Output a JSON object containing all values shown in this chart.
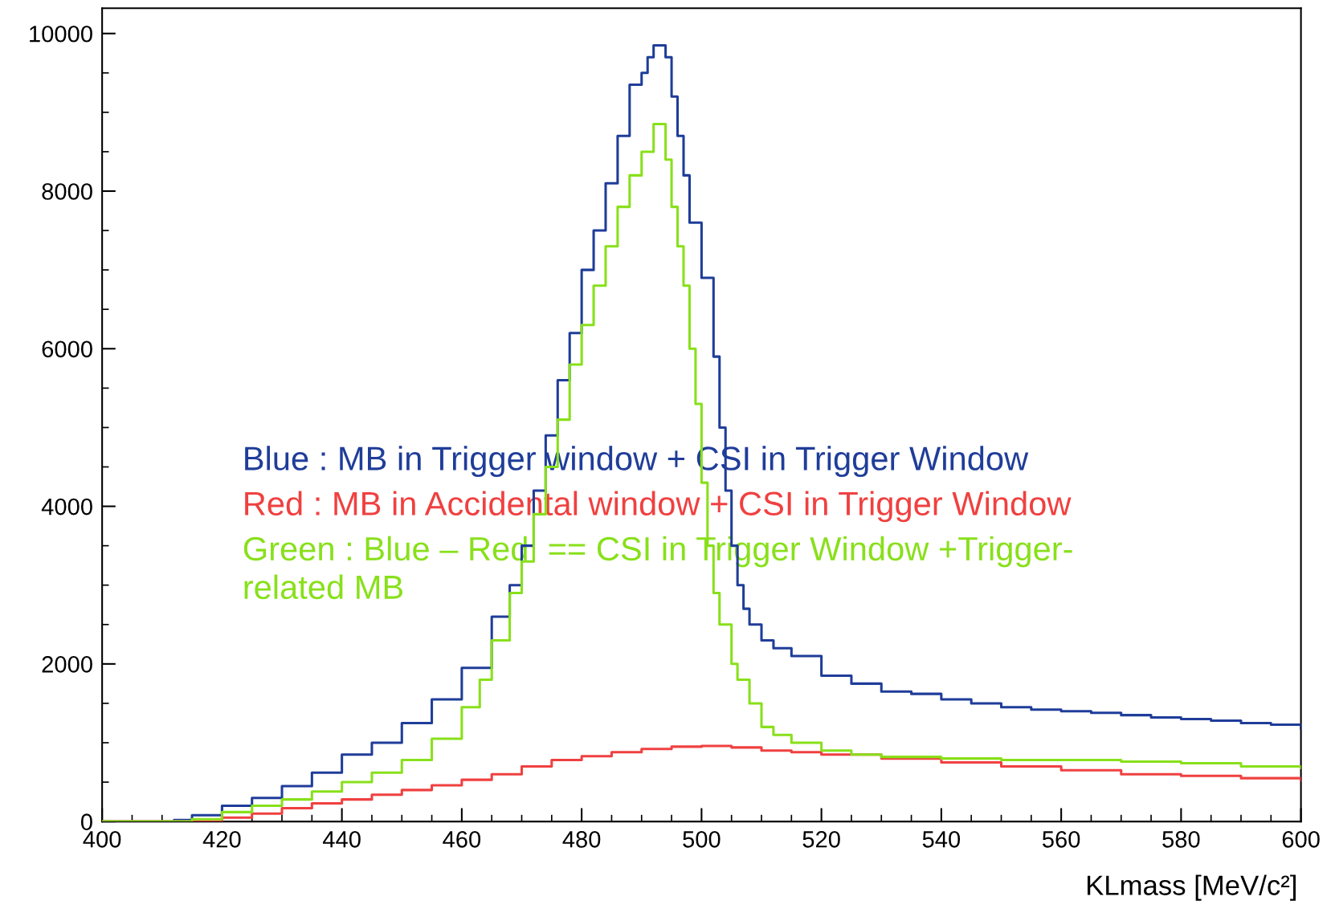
{
  "chart_data": {
    "type": "step",
    "xlabel": "KLmass [MeV/c²]",
    "xlim": [
      400,
      600
    ],
    "xticks": [
      400,
      420,
      440,
      460,
      480,
      500,
      520,
      540,
      560,
      580,
      600
    ],
    "ylim": [
      0,
      10320
    ],
    "yticks": [
      0,
      2000,
      4000,
      6000,
      8000,
      10000
    ],
    "grid": false,
    "annotations": [
      "Blue : MB in Trigger window + CSI in Trigger Window",
      "Red : MB in Accidental window + CSI in Trigger Window",
      "Green : Blue – Red  == CSI in Trigger Window +Trigger-\nrelated MB"
    ],
    "series": [
      {
        "color": "#1f3d99",
        "x": [
          400,
          410,
          412,
          415,
          420,
          425,
          430,
          435,
          440,
          445,
          450,
          455,
          460,
          465,
          468,
          470,
          472,
          474,
          476,
          478,
          480,
          482,
          484,
          486,
          488,
          490,
          491,
          492,
          494,
          495,
          496,
          497,
          498,
          500,
          502,
          503,
          504,
          505,
          506,
          507,
          508,
          510,
          512,
          515,
          520,
          525,
          530,
          535,
          540,
          545,
          550,
          555,
          560,
          565,
          570,
          575,
          580,
          585,
          590,
          595,
          600
        ],
        "values": [
          0,
          0,
          20,
          80,
          200,
          300,
          450,
          620,
          850,
          1000,
          1250,
          1550,
          1950,
          2600,
          3000,
          3500,
          4200,
          4900,
          5600,
          6200,
          7000,
          7500,
          8100,
          8700,
          9350,
          9500,
          9700,
          9850,
          9700,
          9200,
          8700,
          8200,
          7600,
          6900,
          5900,
          5000,
          4200,
          3500,
          3000,
          2700,
          2500,
          2300,
          2200,
          2100,
          1850,
          1750,
          1650,
          1620,
          1550,
          1500,
          1450,
          1420,
          1400,
          1380,
          1350,
          1320,
          1300,
          1280,
          1250,
          1230,
          1180
        ]
      },
      {
        "color": "#f04040",
        "x": [
          400,
          410,
          420,
          425,
          430,
          435,
          440,
          445,
          450,
          455,
          460,
          465,
          470,
          475,
          480,
          485,
          490,
          495,
          500,
          505,
          510,
          515,
          520,
          530,
          540,
          550,
          560,
          570,
          580,
          590,
          600
        ],
        "values": [
          0,
          0,
          50,
          100,
          170,
          230,
          280,
          340,
          400,
          460,
          530,
          600,
          700,
          780,
          830,
          880,
          920,
          950,
          960,
          940,
          900,
          880,
          850,
          800,
          750,
          700,
          650,
          600,
          580,
          550,
          520
        ]
      },
      {
        "color": "#88e01a",
        "x": [
          400,
          410,
          415,
          420,
          425,
          430,
          435,
          440,
          445,
          450,
          455,
          460,
          463,
          465,
          468,
          470,
          472,
          474,
          476,
          478,
          480,
          482,
          484,
          486,
          488,
          490,
          492,
          493,
          494,
          495,
          496,
          497,
          498,
          499,
          500,
          501,
          502,
          503,
          505,
          506,
          508,
          510,
          512,
          515,
          520,
          525,
          530,
          540,
          550,
          560,
          570,
          580,
          590,
          600
        ],
        "values": [
          0,
          0,
          30,
          120,
          200,
          280,
          380,
          500,
          620,
          780,
          1050,
          1450,
          1800,
          2300,
          2900,
          3300,
          3900,
          4500,
          5100,
          5800,
          6300,
          6800,
          7300,
          7800,
          8200,
          8500,
          8850,
          8850,
          8400,
          7800,
          7300,
          6800,
          6000,
          5300,
          4300,
          3500,
          2900,
          2500,
          2000,
          1800,
          1500,
          1200,
          1100,
          1000,
          900,
          850,
          820,
          800,
          780,
          780,
          760,
          740,
          700,
          680
        ]
      }
    ]
  }
}
